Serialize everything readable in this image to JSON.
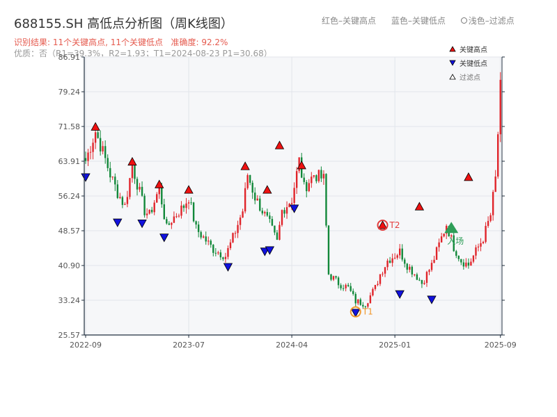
{
  "header": {
    "title": "688155.SH 高低点分析图（周K线图）",
    "result": "识别结果: 11个关键高点, 11个关键低点",
    "accuracy": "准确度: 92.2%",
    "status": "优质：否（R1=39.3%，R2=1.93；T1=2024-08-23 P1=30.68）"
  },
  "top_legend": {
    "red": "红色–关键高点",
    "blue": "蓝色–关键低点",
    "light": "浅色–过滤点"
  },
  "legend": {
    "high": "关键高点",
    "low": "关键低点",
    "filtered": "过滤点"
  },
  "labels": {
    "t1": "T1",
    "t2": "T2",
    "entry": "入场"
  },
  "colors": {
    "up": "#e0242a",
    "down": "#12883a",
    "high_marker": "#ee1111",
    "low_marker": "#1111dd",
    "entry_marker": "#2e9e58",
    "t1_ring": "#f0962a",
    "t2_ring": "#e33b3b",
    "axis": "#1f2d3d",
    "plot_bg": "#f6f7f9",
    "grid": "#e2e5ea"
  },
  "chart_data": {
    "type": "candlestick",
    "y_ticks": [
      25.57,
      33.24,
      40.9,
      48.57,
      56.24,
      63.91,
      71.58,
      79.24,
      86.91
    ],
    "ylim": [
      25.57,
      86.91
    ],
    "x_ticks": [
      "2022-09",
      "2023-07",
      "2024-04",
      "2025-01",
      "2025-09"
    ],
    "x_tick_positions": [
      0,
      42,
      84,
      126,
      169
    ],
    "n_bars": 170,
    "anchors": [
      [
        0,
        64
      ],
      [
        4,
        70.5
      ],
      [
        7,
        66
      ],
      [
        10,
        61
      ],
      [
        13,
        57
      ],
      [
        16,
        54
      ],
      [
        19,
        63
      ],
      [
        24,
        53
      ],
      [
        26,
        52
      ],
      [
        30,
        58
      ],
      [
        33,
        49
      ],
      [
        35,
        51
      ],
      [
        40,
        54
      ],
      [
        42,
        56
      ],
      [
        45,
        49
      ],
      [
        52,
        44.5
      ],
      [
        57,
        43
      ],
      [
        60,
        47
      ],
      [
        64,
        53
      ],
      [
        66,
        61
      ],
      [
        69,
        56
      ],
      [
        75,
        50
      ],
      [
        78,
        46
      ],
      [
        80,
        53
      ],
      [
        84,
        55.5
      ],
      [
        87,
        64
      ],
      [
        89,
        58
      ],
      [
        93,
        61
      ],
      [
        97,
        60
      ],
      [
        99,
        39
      ],
      [
        103,
        37
      ],
      [
        107,
        36
      ],
      [
        110,
        33
      ],
      [
        114,
        32.5
      ],
      [
        118,
        36
      ],
      [
        120,
        39
      ],
      [
        123,
        42
      ],
      [
        128,
        44
      ],
      [
        131,
        41
      ],
      [
        135,
        38.5
      ],
      [
        137,
        37
      ],
      [
        141,
        41
      ],
      [
        145,
        47
      ],
      [
        147,
        50
      ],
      [
        150,
        45
      ],
      [
        153,
        42
      ],
      [
        156,
        41
      ],
      [
        159,
        44
      ],
      [
        162,
        47
      ],
      [
        165,
        52
      ],
      [
        167,
        60
      ],
      [
        169,
        80
      ]
    ],
    "key_highs": [
      {
        "i": 4,
        "p": 71.5
      },
      {
        "i": 19,
        "p": 63.8
      },
      {
        "i": 30,
        "p": 58.8
      },
      {
        "i": 42,
        "p": 57.6
      },
      {
        "i": 65,
        "p": 62.8
      },
      {
        "i": 74,
        "p": 57.6
      },
      {
        "i": 79,
        "p": 67.4
      },
      {
        "i": 88,
        "p": 63.0
      },
      {
        "i": 136,
        "p": 53.9
      },
      {
        "i": 156,
        "p": 60.4
      },
      {
        "i": 121,
        "p": 49.8
      }
    ],
    "key_lows": [
      {
        "i": 0,
        "p": 60.4
      },
      {
        "i": 13,
        "p": 50.4
      },
      {
        "i": 23,
        "p": 50.2
      },
      {
        "i": 32,
        "p": 47.1
      },
      {
        "i": 58,
        "p": 40.6
      },
      {
        "i": 73,
        "p": 44.0
      },
      {
        "i": 75,
        "p": 44.3
      },
      {
        "i": 85,
        "p": 53.5
      },
      {
        "i": 128,
        "p": 34.6
      },
      {
        "i": 141,
        "p": 33.4
      },
      {
        "i": 110,
        "p": 30.5
      }
    ],
    "t1": {
      "i": 110,
      "p": 30.68
    },
    "t2": {
      "i": 121,
      "p": 49.8
    },
    "entry": {
      "i": 149,
      "p": 49.0
    }
  }
}
